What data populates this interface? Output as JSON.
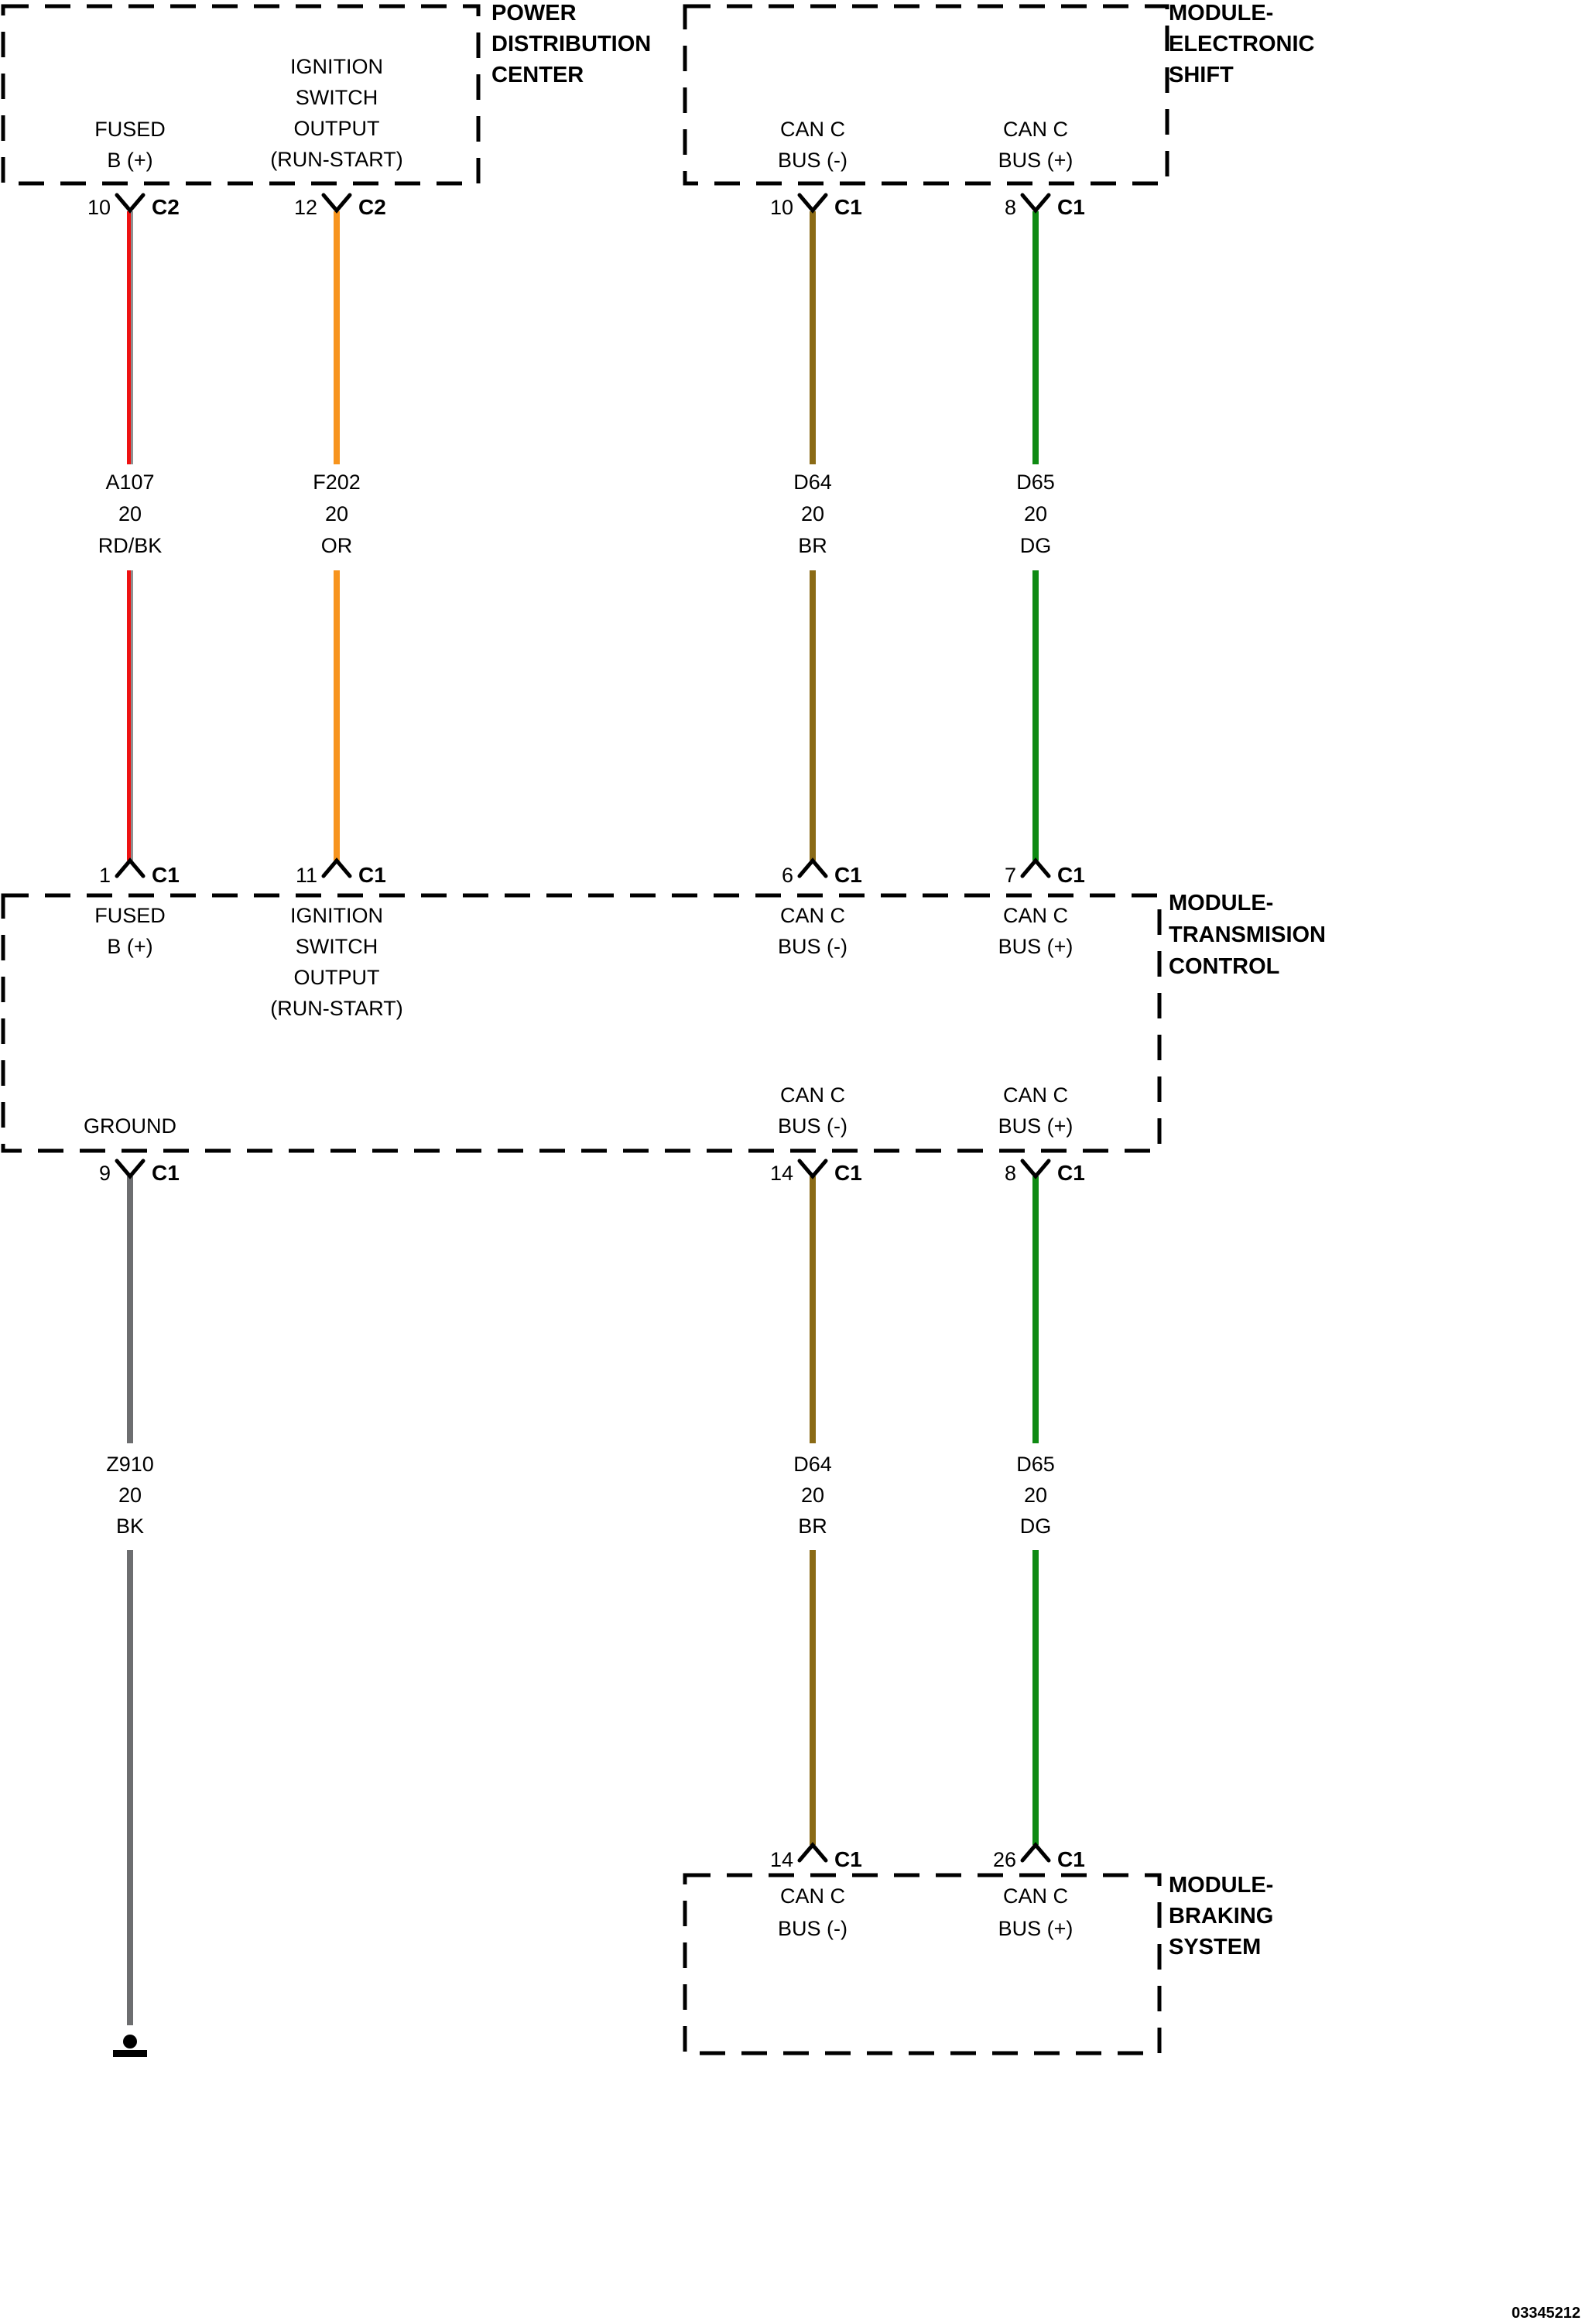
{
  "footer": {
    "doc_id": "03345212"
  },
  "colors": {
    "line": "#000000",
    "red": "#ee1111",
    "red_stripe": "#8f8f8f",
    "orange": "#f7941e",
    "brown": "#8a6a15",
    "green": "#0e8a12",
    "gray": "#6d6e70"
  },
  "modules": [
    {
      "title_lines": [
        "POWER",
        "DISTRIBUTION",
        "CENTER"
      ]
    },
    {
      "title_lines": [
        "MODULE-",
        "ELECTRONIC",
        "SHIFT"
      ]
    },
    {
      "title_lines": [
        "MODULE-",
        "TRANSMISION",
        "CONTROL"
      ]
    },
    {
      "title_lines": [
        "MODULE-",
        "BRAKING",
        "SYSTEM"
      ]
    }
  ],
  "box_labels": {
    "pdc": [
      [
        "FUSED",
        "B (+)"
      ],
      [
        "IGNITION",
        "SWITCH",
        "OUTPUT",
        "(RUN-START)"
      ]
    ],
    "esm": [
      [
        "CAN C",
        "BUS (-)"
      ],
      [
        "CAN C",
        "BUS (+)"
      ]
    ],
    "tcm_top": [
      [
        "FUSED",
        "B (+)"
      ],
      [
        "IGNITION",
        "SWITCH",
        "OUTPUT",
        "(RUN-START)"
      ],
      [
        "CAN C",
        "BUS (-)"
      ],
      [
        "CAN C",
        "BUS (+)"
      ]
    ],
    "tcm_bottom": [
      [
        "GROUND"
      ],
      [
        "CAN C",
        "BUS (-)"
      ],
      [
        "CAN C",
        "BUS (+)"
      ]
    ],
    "bsm": [
      [
        "CAN C",
        "BUS (-)"
      ],
      [
        "CAN C",
        "BUS (+)"
      ]
    ]
  },
  "wire_labels": {
    "top": [
      [
        "A107",
        "20",
        "RD/BK"
      ],
      [
        "F202",
        "20",
        "OR"
      ],
      [
        "D64",
        "20",
        "BR"
      ],
      [
        "D65",
        "20",
        "DG"
      ]
    ],
    "bottom": [
      [
        "Z910",
        "20",
        "BK"
      ],
      [
        "D64",
        "20",
        "BR"
      ],
      [
        "D65",
        "20",
        "DG"
      ]
    ]
  },
  "pins": {
    "row1": [
      {
        "num": "10",
        "conn": "C2"
      },
      {
        "num": "12",
        "conn": "C2"
      },
      {
        "num": "10",
        "conn": "C1"
      },
      {
        "num": "8",
        "conn": "C1"
      }
    ],
    "row2": [
      {
        "num": "1",
        "conn": "C1"
      },
      {
        "num": "11",
        "conn": "C1"
      },
      {
        "num": "6",
        "conn": "C1"
      },
      {
        "num": "7",
        "conn": "C1"
      }
    ],
    "row3": [
      {
        "num": "9",
        "conn": "C1"
      },
      {
        "num": "14",
        "conn": "C1"
      },
      {
        "num": "8",
        "conn": "C1"
      }
    ],
    "row4": [
      {
        "num": "14",
        "conn": "C1"
      },
      {
        "num": "26",
        "conn": "C1"
      }
    ]
  }
}
